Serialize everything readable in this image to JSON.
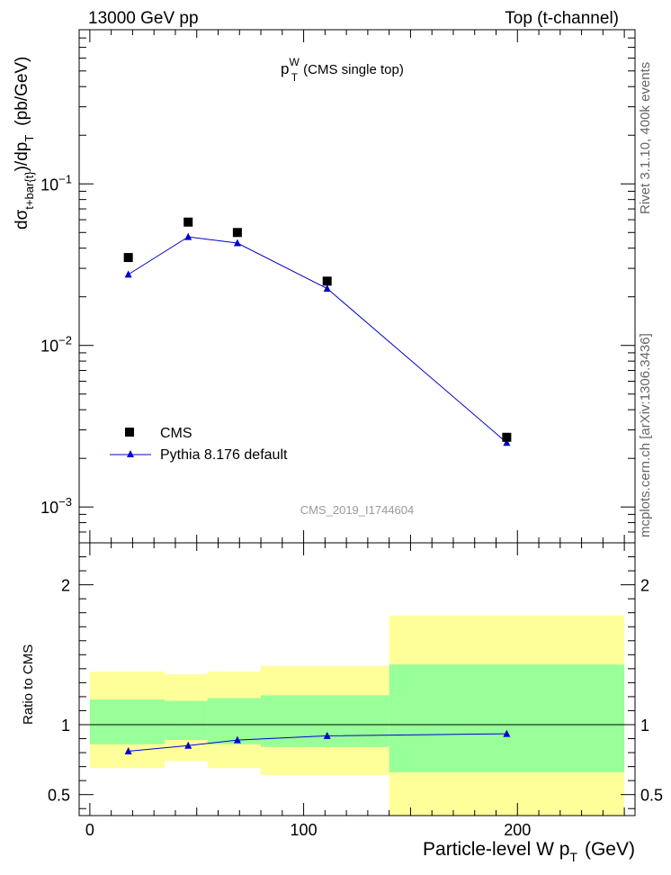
{
  "header": {
    "left": "13000 GeV pp",
    "right": "Top (t-channel)"
  },
  "side_labels": {
    "rivet": "Rivet 3.1.10,  400k events",
    "mcplots": "mcplots.cern.ch [arXiv:1306.3436]"
  },
  "plot_title": {
    "main": "p",
    "sup": "W",
    "sub": "T",
    "suffix": "(CMS single top)"
  },
  "y_label": {
    "prefix": "dσ",
    "sub": "t+bar{t}",
    "middle": ")/dp",
    "sub2": "T",
    "unit": "(pb/GeV)"
  },
  "x_label": {
    "main": "Particle-level W p",
    "sub": "T",
    "unit": "(GeV)"
  },
  "analysis_id": "CMS_2019_I1744604",
  "ratio_ylabel": "Ratio to CMS",
  "legend": {
    "cms": "CMS",
    "pythia": "Pythia 8.176 default"
  },
  "colors": {
    "cms": "#000000",
    "pythia": "#0000cc",
    "band_inner": "#99ff99",
    "band_outer": "#ffff99"
  },
  "chart_data": {
    "type": "line",
    "x_range": [
      -5,
      255
    ],
    "main_panel": {
      "yscale": "log",
      "ylim": [
        0.0006,
        0.9
      ],
      "yticks": [
        {
          "value": 0.001,
          "base": "10",
          "exp": "−3"
        },
        {
          "value": 0.01,
          "base": "10",
          "exp": "−2"
        },
        {
          "value": 0.1,
          "base": "10",
          "exp": "−1"
        }
      ],
      "series": [
        {
          "name": "CMS",
          "marker": "square",
          "x": [
            18,
            46,
            69,
            111,
            195
          ],
          "y": [
            0.035,
            0.058,
            0.05,
            0.025,
            0.0027
          ]
        },
        {
          "name": "Pythia 8.176 default",
          "marker": "triangle",
          "x": [
            18,
            46,
            69,
            111,
            195
          ],
          "y": [
            0.0275,
            0.047,
            0.043,
            0.0225,
            0.0025
          ]
        }
      ]
    },
    "ratio_panel": {
      "ylim": [
        0.35,
        2.3
      ],
      "yticks": [
        0.5,
        1,
        2
      ],
      "ytick_labels": [
        "0.5",
        "1",
        "2"
      ],
      "reference": 1.0,
      "bands": [
        {
          "x0": 0,
          "x1": 35,
          "inner": [
            0.86,
            1.18
          ],
          "outer": [
            0.69,
            1.38
          ]
        },
        {
          "x0": 35,
          "x1": 55,
          "inner": [
            0.89,
            1.17
          ],
          "outer": [
            0.74,
            1.36
          ]
        },
        {
          "x0": 55,
          "x1": 80,
          "inner": [
            0.86,
            1.19
          ],
          "outer": [
            0.69,
            1.38
          ]
        },
        {
          "x0": 80,
          "x1": 140,
          "inner": [
            0.84,
            1.21
          ],
          "outer": [
            0.64,
            1.42
          ]
        },
        {
          "x0": 140,
          "x1": 250,
          "inner": [
            0.66,
            1.43
          ],
          "outer": [
            0.35,
            1.78
          ]
        }
      ],
      "series": [
        {
          "name": "Pythia 8.176 default",
          "x": [
            18,
            46,
            69,
            111,
            195
          ],
          "y": [
            0.81,
            0.85,
            0.89,
            0.92,
            0.935
          ],
          "err": [
            0.01,
            0.01,
            0.01,
            0.01,
            0.02
          ]
        }
      ]
    },
    "xticks": [
      0,
      100,
      200
    ],
    "xtick_labels": [
      "0",
      "100",
      "200"
    ]
  }
}
